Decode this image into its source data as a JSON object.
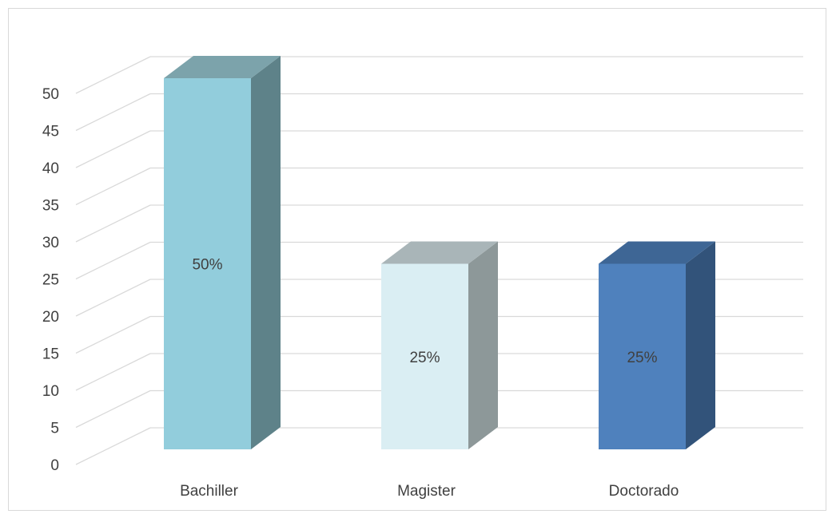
{
  "chart_data": {
    "type": "bar",
    "style": "3d-column",
    "categories": [
      "Bachiller",
      "Magister",
      "Doctorado"
    ],
    "values": [
      50,
      25,
      25
    ],
    "data_labels": [
      "50%",
      "25%",
      "25%"
    ],
    "title": "",
    "xlabel": "",
    "ylabel": "",
    "ylim": [
      0,
      50
    ],
    "ytick_step": 5,
    "yticks": [
      "0",
      "5",
      "10",
      "15",
      "20",
      "25",
      "30",
      "35",
      "40",
      "45",
      "50"
    ],
    "grid": true,
    "legend": "none",
    "colors": [
      {
        "front": "#92CDDC",
        "side": "#5E8289",
        "top": "#7CA3AB"
      },
      {
        "front": "#DAEEF3",
        "side": "#8D9899",
        "top": "#A9B5B8"
      },
      {
        "front": "#4F81BD",
        "side": "#32537A",
        "top": "#3E6695"
      }
    ],
    "grid_color": "#d9d9d9",
    "text_color": "#404040"
  }
}
